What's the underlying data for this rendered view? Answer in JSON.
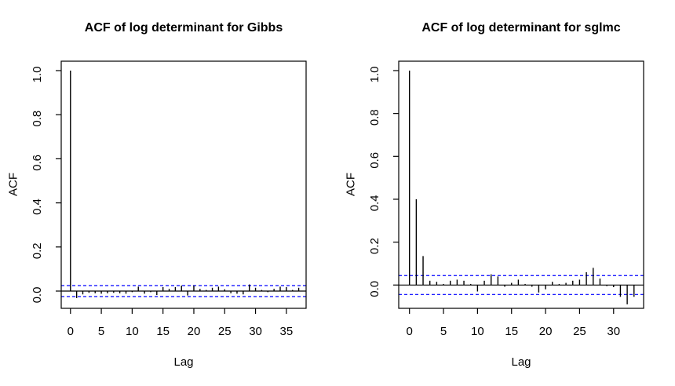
{
  "colors": {
    "bar": "#000000",
    "axis": "#000000",
    "ci_line": "#0000ff",
    "background": "#ffffff",
    "text": "#000000"
  },
  "chart_data": [
    {
      "type": "bar",
      "title": "ACF of log determinant for Gibbs",
      "xlabel": "Lag",
      "ylabel": "ACF",
      "x": [
        0,
        1,
        2,
        3,
        4,
        5,
        6,
        7,
        8,
        9,
        10,
        11,
        12,
        13,
        14,
        15,
        16,
        17,
        18,
        19,
        20,
        21,
        22,
        23,
        24,
        25,
        26,
        27,
        28,
        29,
        30,
        31,
        32,
        33,
        34,
        35,
        36,
        37
      ],
      "values": [
        1.0,
        -0.032,
        -0.015,
        -0.008,
        -0.01,
        -0.012,
        -0.01,
        -0.008,
        -0.01,
        -0.012,
        -0.005,
        0.02,
        -0.012,
        -0.005,
        -0.018,
        0.018,
        0.01,
        0.018,
        0.025,
        -0.02,
        0.025,
        0.01,
        0.005,
        0.015,
        0.02,
        0.008,
        -0.01,
        -0.012,
        -0.015,
        0.03,
        0.015,
        0.005,
        -0.005,
        0.01,
        0.02,
        0.018,
        0.005,
        0.015
      ],
      "ci": 0.025,
      "ci_style": "dashed",
      "xticks": [
        0,
        5,
        10,
        15,
        20,
        25,
        30,
        35
      ],
      "yticks": [
        0.0,
        0.2,
        0.4,
        0.6,
        0.8,
        1.0
      ],
      "ytick_labels": [
        "0.0",
        "0.2",
        "0.4",
        "0.6",
        "0.8",
        "1.0"
      ],
      "xlim": [
        -1.5,
        38.2
      ],
      "ylim": [
        -0.0783,
        1.0427
      ],
      "grid": false,
      "legend": "none"
    },
    {
      "type": "bar",
      "title": "ACF of log determinant for sglmc",
      "xlabel": "Lag",
      "ylabel": "ACF",
      "x": [
        0,
        1,
        2,
        3,
        4,
        5,
        6,
        7,
        8,
        9,
        10,
        11,
        12,
        13,
        14,
        15,
        16,
        17,
        18,
        19,
        20,
        21,
        22,
        23,
        24,
        25,
        26,
        27,
        28,
        29,
        30,
        31,
        32,
        33
      ],
      "values": [
        1.0,
        0.4,
        0.135,
        0.02,
        0.015,
        0.005,
        0.02,
        0.025,
        0.02,
        0.005,
        -0.03,
        0.02,
        0.05,
        0.04,
        -0.008,
        0.01,
        0.025,
        0.005,
        -0.008,
        -0.035,
        -0.02,
        0.015,
        0.005,
        0.01,
        0.02,
        0.025,
        0.06,
        0.08,
        0.03,
        -0.005,
        -0.01,
        -0.055,
        -0.09,
        -0.055
      ],
      "ci": 0.044,
      "ci_style": "dashed",
      "xticks": [
        0,
        5,
        10,
        15,
        20,
        25,
        30
      ],
      "yticks": [
        0.0,
        0.2,
        0.4,
        0.6,
        0.8,
        1.0
      ],
      "ytick_labels": [
        "0.0",
        "0.2",
        "0.4",
        "0.6",
        "0.8",
        "1.0"
      ],
      "xlim": [
        -1.58,
        34.41
      ],
      "ylim": [
        -0.1087,
        1.0438
      ],
      "grid": false,
      "legend": "none"
    }
  ]
}
